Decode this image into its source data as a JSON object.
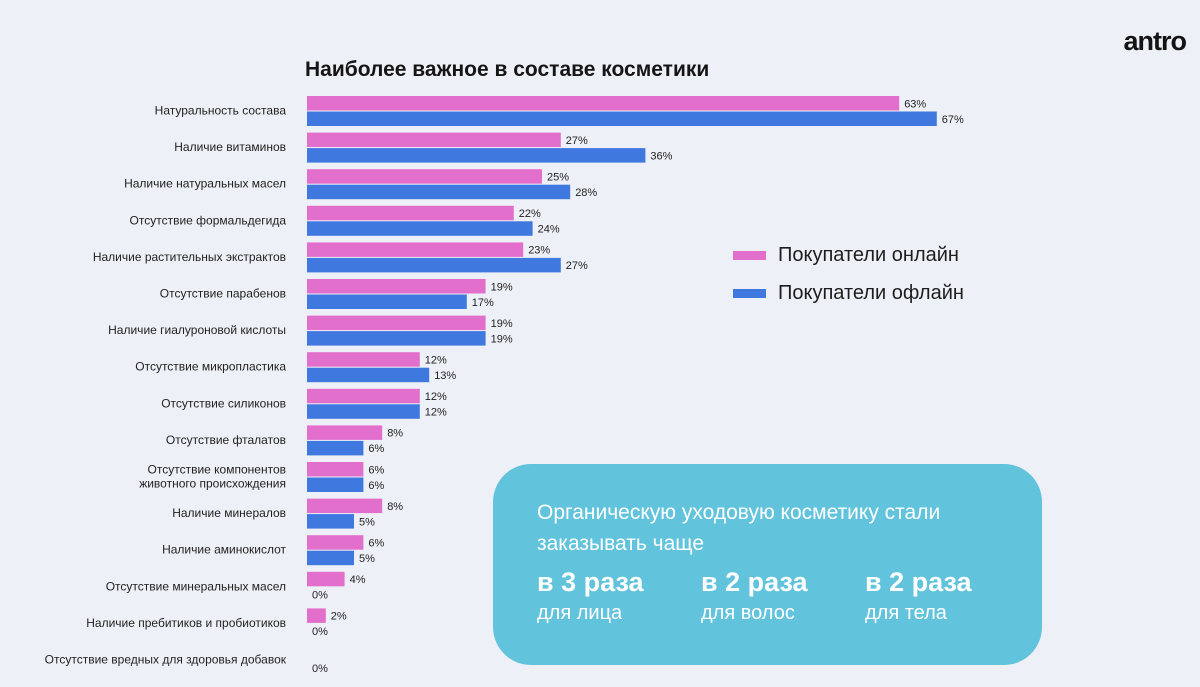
{
  "logo": "antro",
  "chart_data": {
    "type": "bar",
    "orientation": "horizontal",
    "title": "Наиболее важное в составе косметики",
    "unit": "%",
    "categories": [
      "Натуральность состава",
      "Наличие витаминов",
      "Наличие натуральных масел",
      "Отсутствие формальдегида",
      "Наличие растительных экстрактов",
      "Отсутствие парабенов",
      "Наличие гиалуроновой кислоты",
      "Отсутствие микропластика",
      "Отсутствие силиконов",
      "Отсутствие фталатов",
      [
        "Отсутствие компонентов",
        "животного происхождения"
      ],
      "Наличие минералов",
      "Наличие аминокислот",
      "Отсутствие минеральных масел",
      "Наличие пребитиков и пробиотиков",
      "Отсутствие вредных для здоровья добавок"
    ],
    "series": [
      {
        "name": "Покупатели онлайн",
        "color": "#e36fcd",
        "values": [
          63,
          27,
          25,
          22,
          23,
          19,
          19,
          12,
          12,
          8,
          6,
          8,
          6,
          4,
          2,
          null
        ]
      },
      {
        "name": "Покупатели офлайн",
        "color": "#3f78de",
        "values": [
          67,
          36,
          28,
          24,
          27,
          17,
          19,
          13,
          12,
          6,
          6,
          5,
          5,
          0,
          0,
          0
        ]
      }
    ],
    "xlim": [
      0,
      100
    ],
    "legend_position": "right"
  },
  "callout": {
    "text": "Органическую уходовую косметику стали заказывать чаще",
    "stats": [
      {
        "value": "в 3 раза",
        "caption": "для лица"
      },
      {
        "value": "в 2 раза",
        "caption": "для волос"
      },
      {
        "value": "в 2 раза",
        "caption": "для тела"
      }
    ]
  }
}
